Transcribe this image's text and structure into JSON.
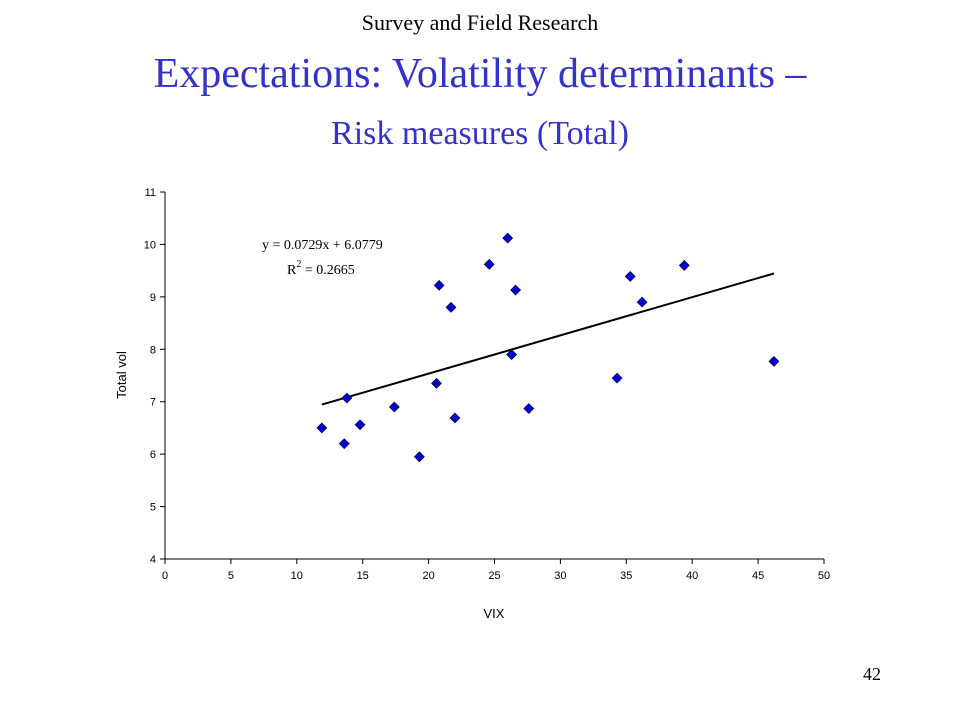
{
  "slide": {
    "header": "Survey and Field Research",
    "title": "Expectations: Volatility determinants –",
    "subtitle": "Risk measures (Total)",
    "page_number": "42",
    "title_color": "#3333cc"
  },
  "chart_data": {
    "type": "scatter",
    "xlabel": "VIX",
    "ylabel": "Total vol",
    "xlim": [
      0,
      50
    ],
    "ylim": [
      4,
      11
    ],
    "x_ticks": [
      0,
      5,
      10,
      15,
      20,
      25,
      30,
      35,
      40,
      45,
      50
    ],
    "y_ticks": [
      4,
      5,
      6,
      7,
      8,
      9,
      10,
      11
    ],
    "grid": false,
    "marker": "diamond",
    "marker_color": "#0000cc",
    "points": [
      {
        "x": 11.9,
        "y": 6.5
      },
      {
        "x": 13.6,
        "y": 6.2
      },
      {
        "x": 13.8,
        "y": 7.07
      },
      {
        "x": 14.8,
        "y": 6.56
      },
      {
        "x": 17.4,
        "y": 6.9
      },
      {
        "x": 19.3,
        "y": 5.95
      },
      {
        "x": 20.6,
        "y": 7.35
      },
      {
        "x": 20.8,
        "y": 9.22
      },
      {
        "x": 21.7,
        "y": 8.8
      },
      {
        "x": 22.0,
        "y": 6.69
      },
      {
        "x": 24.6,
        "y": 9.62
      },
      {
        "x": 26.0,
        "y": 10.12
      },
      {
        "x": 26.3,
        "y": 7.9
      },
      {
        "x": 26.6,
        "y": 9.13
      },
      {
        "x": 27.6,
        "y": 6.87
      },
      {
        "x": 34.3,
        "y": 7.45
      },
      {
        "x": 35.3,
        "y": 9.39
      },
      {
        "x": 36.2,
        "y": 8.9
      },
      {
        "x": 39.4,
        "y": 9.6
      },
      {
        "x": 46.2,
        "y": 7.77
      }
    ],
    "trendline": {
      "slope": 0.0729,
      "intercept": 6.0779,
      "x_range": [
        11.9,
        46.2
      ],
      "equation": "y = 0.0729x + 6.0779",
      "r2_label": "R",
      "r2_value": " = 0.2665"
    }
  }
}
